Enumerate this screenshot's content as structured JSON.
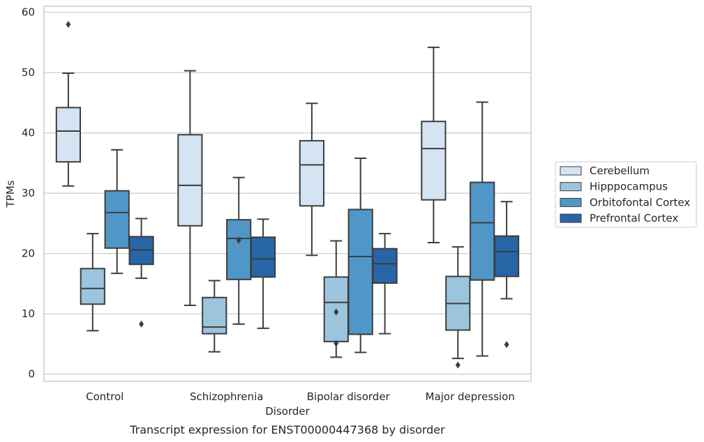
{
  "caption": "Transcript expression for ENST00000447368 by disorder",
  "chart_data": {
    "type": "box",
    "xlabel": "Disorder",
    "ylabel": "TPMs",
    "ylim": [
      -1.2,
      61
    ],
    "yticks": [
      0,
      10,
      20,
      30,
      40,
      50,
      60
    ],
    "grid": "horizontal",
    "legend_position": "right",
    "categories": [
      "Control",
      "Schizophrenia",
      "Bipolar disorder",
      "Major depression"
    ],
    "series": [
      {
        "name": "Cerebellum",
        "color": "#d5e4f2",
        "boxes": [
          {
            "whisker_low": 31.2,
            "q1": 35.2,
            "median": 40.3,
            "q3": 44.2,
            "whisker_high": 49.9,
            "outliers": [
              58.0
            ]
          },
          {
            "whisker_low": 11.4,
            "q1": 24.6,
            "median": 31.3,
            "q3": 39.7,
            "whisker_high": 50.3,
            "outliers": []
          },
          {
            "whisker_low": 19.7,
            "q1": 27.9,
            "median": 34.7,
            "q3": 38.7,
            "whisker_high": 44.9,
            "outliers": []
          },
          {
            "whisker_low": 21.8,
            "q1": 28.9,
            "median": 37.4,
            "q3": 41.9,
            "whisker_high": 54.2,
            "outliers": []
          }
        ]
      },
      {
        "name": "Hipppocampus",
        "color": "#9cc4dd",
        "boxes": [
          {
            "whisker_low": 7.2,
            "q1": 11.6,
            "median": 14.2,
            "q3": 17.5,
            "whisker_high": 23.3,
            "outliers": []
          },
          {
            "whisker_low": 3.7,
            "q1": 6.7,
            "median": 7.8,
            "q3": 12.7,
            "whisker_high": 15.5,
            "outliers": []
          },
          {
            "whisker_low": 2.8,
            "q1": 5.4,
            "median": 11.9,
            "q3": 16.1,
            "whisker_high": 22.1,
            "outliers": [
              10.3,
              5.1
            ]
          },
          {
            "whisker_low": 2.6,
            "q1": 7.3,
            "median": 11.7,
            "q3": 16.2,
            "whisker_high": 21.1,
            "outliers": [
              1.5
            ]
          }
        ]
      },
      {
        "name": "Orbitofontal Cortex",
        "color": "#5097c8",
        "boxes": [
          {
            "whisker_low": 16.7,
            "q1": 20.9,
            "median": 26.8,
            "q3": 30.4,
            "whisker_high": 37.2,
            "outliers": []
          },
          {
            "whisker_low": 8.3,
            "q1": 15.7,
            "median": 22.5,
            "q3": 25.6,
            "whisker_high": 32.6,
            "outliers": [
              22.2
            ]
          },
          {
            "whisker_low": 3.6,
            "q1": 6.6,
            "median": 19.5,
            "q3": 27.3,
            "whisker_high": 35.8,
            "outliers": []
          },
          {
            "whisker_low": 3.0,
            "q1": 15.6,
            "median": 25.1,
            "q3": 31.8,
            "whisker_high": 45.1,
            "outliers": []
          }
        ]
      },
      {
        "name": "Prefrontal Cortex",
        "color": "#2865a6",
        "boxes": [
          {
            "whisker_low": 15.9,
            "q1": 18.2,
            "median": 20.6,
            "q3": 22.8,
            "whisker_high": 25.8,
            "outliers": [
              8.3
            ]
          },
          {
            "whisker_low": 7.6,
            "q1": 16.1,
            "median": 19.1,
            "q3": 22.7,
            "whisker_high": 25.7,
            "outliers": []
          },
          {
            "whisker_low": 6.7,
            "q1": 15.1,
            "median": 18.3,
            "q3": 20.8,
            "whisker_high": 23.3,
            "outliers": []
          },
          {
            "whisker_low": 12.5,
            "q1": 16.2,
            "median": 20.3,
            "q3": 22.9,
            "whisker_high": 28.6,
            "outliers": [
              4.9
            ]
          }
        ]
      }
    ]
  }
}
